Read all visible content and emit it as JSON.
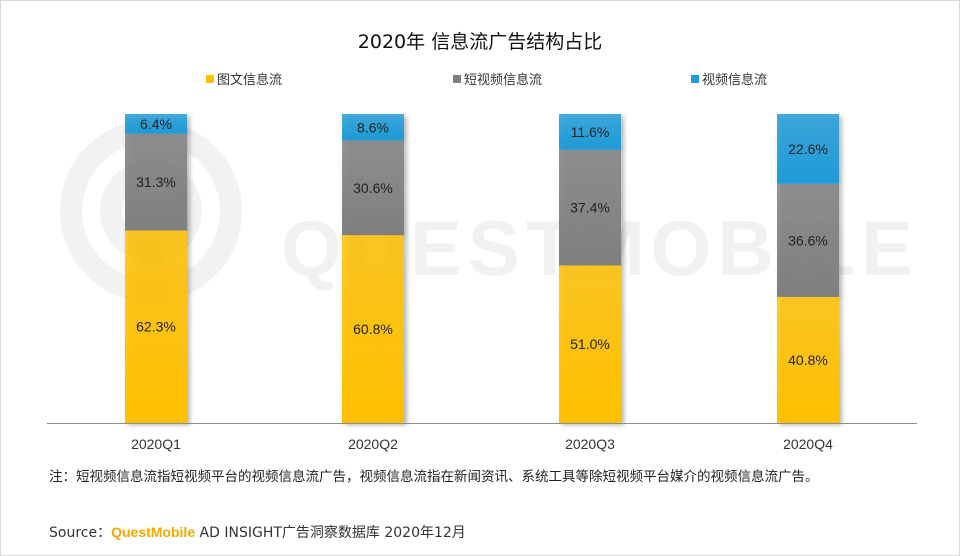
{
  "watermark_text": "QUESTMOBILE",
  "note": "注：短视频信息流指短视频平台的视频信息流广告，视频信息流指在新闻资讯、系统工具等除短视频平台媒介的视频信息流广告。",
  "source": {
    "label": "Source：",
    "brand": "QuestMobile",
    "rest": " AD INSIGHT广告洞察数据库 2020年12月"
  },
  "chart_data": {
    "type": "bar",
    "stacked": true,
    "title": "2020年 信息流广告结构占比",
    "categories": [
      "2020Q1",
      "2020Q2",
      "2020Q3",
      "2020Q4"
    ],
    "series": [
      {
        "name": "图文信息流",
        "color": "#FFC000",
        "values": [
          62.3,
          60.8,
          51.0,
          40.8
        ],
        "labels": [
          "62.3%",
          "60.8%",
          "51.0%",
          "40.8%"
        ]
      },
      {
        "name": "短视频信息流",
        "color": "#7F7F7F",
        "values": [
          31.3,
          30.6,
          37.4,
          36.6
        ],
        "labels": [
          "31.3%",
          "30.6%",
          "37.4%",
          "36.6%"
        ]
      },
      {
        "name": "视频信息流",
        "color": "#1F9BD7",
        "values": [
          6.4,
          8.6,
          11.6,
          22.6
        ],
        "labels": [
          "6.4%",
          "8.6%",
          "11.6%",
          "22.6%"
        ]
      }
    ],
    "ylim": [
      0,
      100
    ],
    "legend": "top",
    "grid": false
  }
}
